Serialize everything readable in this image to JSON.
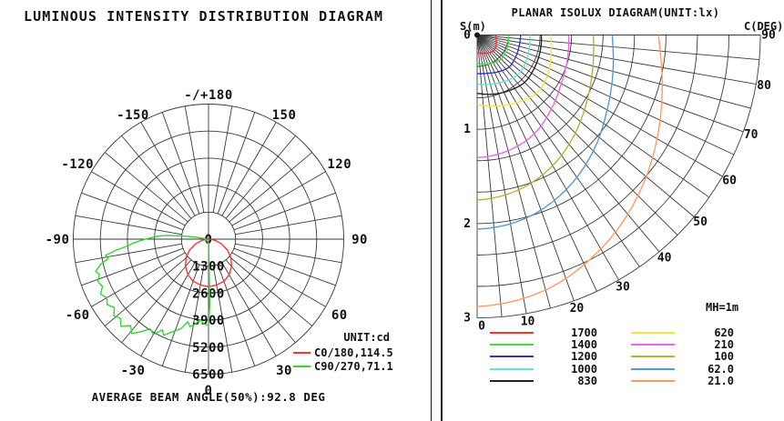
{
  "left_panel": {
    "title": "LUMINOUS INTENSITY DISTRIBUTION DIAGRAM",
    "footer": "AVERAGE BEAM ANGLE(50%):92.8 DEG",
    "legend": {
      "unit_label": "UNIT:cd",
      "entries": [
        {
          "label": "C0/180,114.5",
          "color": "#ff3333"
        },
        {
          "label": "C90/270,71.1",
          "color": "#33d433"
        }
      ]
    }
  },
  "right_panel": {
    "title": "PLANAR ISOLUX DIAGRAM(UNIT:lx)",
    "s_axis_label": "S(m)",
    "c_axis_label": "C(DEG)",
    "mh_label": "MH=1m"
  },
  "chart_data": [
    {
      "id": "luminous-intensity-polar",
      "type": "line",
      "coordinate": "polar",
      "title": "LUMINOUS INTENSITY DISTRIBUTION DIAGRAM",
      "unit": "cd",
      "angle_zero_direction": "down",
      "spoke_step_deg": 10,
      "ring_step_cd": 1300,
      "ring_labels": [
        "0",
        "1300",
        "2600",
        "3900",
        "5200",
        "6500"
      ],
      "ring_values": [
        1300,
        2600,
        3900,
        5200,
        6500
      ],
      "angle_labels": [
        {
          "angle": 180,
          "text": "-/+180"
        },
        {
          "angle": 150,
          "text": "150"
        },
        {
          "angle": -150,
          "text": "-150"
        },
        {
          "angle": 120,
          "text": "120"
        },
        {
          "angle": -120,
          "text": "-120"
        },
        {
          "angle": 90,
          "text": "90"
        },
        {
          "angle": -90,
          "text": "-90"
        },
        {
          "angle": 60,
          "text": "60"
        },
        {
          "angle": -60,
          "text": "-60"
        },
        {
          "angle": 30,
          "text": "30"
        },
        {
          "angle": -30,
          "text": "-30"
        },
        {
          "angle": 0,
          "text": "0"
        }
      ],
      "series": [
        {
          "name": "C0/180,114.5",
          "color": "#ff3333",
          "closed": true,
          "points_deg_cd": [
            [
              -88,
              40
            ],
            [
              -80,
              310
            ],
            [
              -70,
              660
            ],
            [
              -60,
              1050
            ],
            [
              -50,
              1410
            ],
            [
              -40,
              1720
            ],
            [
              -30,
              1980
            ],
            [
              -20,
              2160
            ],
            [
              -10,
              2240
            ],
            [
              0,
              2290
            ],
            [
              10,
              2240
            ],
            [
              20,
              2160
            ],
            [
              30,
              1980
            ],
            [
              40,
              1720
            ],
            [
              50,
              1410
            ],
            [
              60,
              1050
            ],
            [
              70,
              660
            ],
            [
              80,
              310
            ],
            [
              88,
              40
            ]
          ]
        },
        {
          "name": "C90/270,71.1",
          "color": "#33d433",
          "closed": true,
          "points_deg_cd": [
            [
              2,
              200
            ],
            [
              1,
              3200
            ],
            [
              0,
              4150
            ],
            [
              -3,
              4100
            ],
            [
              -6,
              3900
            ],
            [
              -9,
              4150
            ],
            [
              -12,
              4300
            ],
            [
              -14,
              4100
            ],
            [
              -17,
              4500
            ],
            [
              -20,
              4700
            ],
            [
              -22,
              4850
            ],
            [
              -25,
              5100
            ],
            [
              -27,
              4900
            ],
            [
              -30,
              5300
            ],
            [
              -33,
              5150
            ],
            [
              -36,
              5500
            ],
            [
              -39,
              5850
            ],
            [
              -42,
              5600
            ],
            [
              -45,
              5950
            ],
            [
              -48,
              5700
            ],
            [
              -51,
              5850
            ],
            [
              -54,
              5600
            ],
            [
              -57,
              5800
            ],
            [
              -60,
              5650
            ],
            [
              -63,
              5820
            ],
            [
              -66,
              5580
            ],
            [
              -69,
              5700
            ],
            [
              -72,
              5520
            ],
            [
              -74,
              5640
            ],
            [
              -77,
              5310
            ],
            [
              -79,
              4920
            ],
            [
              -81,
              5010
            ],
            [
              -83,
              4520
            ],
            [
              -85,
              3950
            ],
            [
              -87,
              3620
            ],
            [
              -89,
              3230
            ],
            [
              -91,
              2840
            ],
            [
              -93,
              2520
            ],
            [
              -95,
              2060
            ],
            [
              -97,
              1340
            ],
            [
              -99,
              620
            ],
            [
              -100,
              160
            ]
          ]
        }
      ],
      "footer": "AVERAGE BEAM ANGLE(50%):92.8 DEG"
    },
    {
      "id": "planar-isolux-fan",
      "type": "line",
      "coordinate": "polar-fan",
      "title": "PLANAR ISOLUX DIAGRAM(UNIT:lx)",
      "unit": "lx",
      "mounting_height_label": "MH=1m",
      "s_axis": {
        "label": "S(m)",
        "ticks": [
          "0",
          "1",
          "2",
          "3"
        ],
        "max_m": 3
      },
      "c_axis": {
        "label": "C(DEG)",
        "ticks": [
          "0",
          "10",
          "20",
          "30",
          "40",
          "50",
          "60",
          "70",
          "80",
          "90"
        ]
      },
      "spoke_step_deg": 5,
      "arc_count": 9,
      "curve_theta_samples_deg": [
        0,
        15,
        30,
        45,
        60,
        75,
        90
      ],
      "curves": [
        {
          "value": "1700",
          "color": "#ff3333",
          "r_m": [
            0.19,
            0.2,
            0.22,
            0.24,
            0.23,
            0.21,
            0.2
          ]
        },
        {
          "value": "1400",
          "color": "#44dd44",
          "r_m": [
            0.3,
            0.32,
            0.34,
            0.36,
            0.35,
            0.34,
            0.33
          ]
        },
        {
          "value": "1200",
          "color": "#3333cc",
          "r_m": [
            0.41,
            0.42,
            0.45,
            0.48,
            0.47,
            0.46,
            0.46
          ]
        },
        {
          "value": "1000",
          "color": "#63e6d5",
          "r_m": [
            0.52,
            0.54,
            0.57,
            0.6,
            0.59,
            0.57,
            0.56
          ]
        },
        {
          "value": "830",
          "color": "#222222",
          "r_m": [
            0.62,
            0.65,
            0.68,
            0.71,
            0.7,
            0.69,
            0.68
          ]
        },
        {
          "value": "620",
          "color": "#ebeb3c",
          "r_m": [
            0.74,
            0.78,
            0.83,
            0.88,
            0.86,
            0.81,
            0.78
          ]
        },
        {
          "value": "210",
          "color": "#ee66ee",
          "r_m": [
            1.3,
            1.27,
            1.21,
            1.11,
            1.03,
            0.99,
            0.97
          ]
        },
        {
          "value": "100",
          "color": "#b4b42e",
          "r_m": [
            1.75,
            1.7,
            1.6,
            1.47,
            1.35,
            1.27,
            1.23
          ]
        },
        {
          "value": "62.0",
          "color": "#5599dd",
          "r_m": [
            2.06,
            2.01,
            1.89,
            1.74,
            1.59,
            1.49,
            1.43
          ]
        },
        {
          "value": "21.0",
          "color": "#ff9966",
          "r_m": [
            2.88,
            2.8,
            2.62,
            2.41,
            2.2,
            2.03,
            1.92
          ]
        }
      ]
    }
  ]
}
